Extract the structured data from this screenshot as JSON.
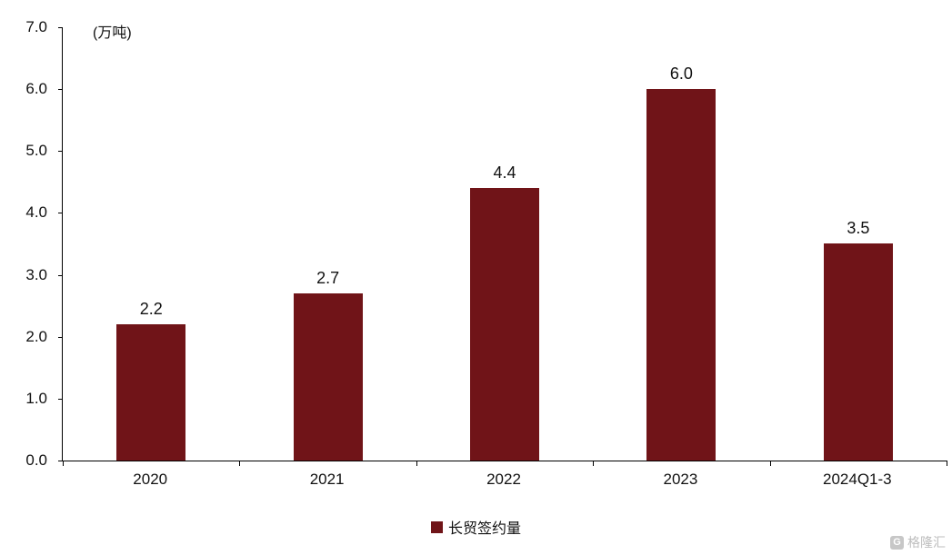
{
  "chart_data": {
    "type": "bar",
    "title": "",
    "unit_label": "(万吨)",
    "categories": [
      "2020",
      "2021",
      "2022",
      "2023",
      "2024Q1-3"
    ],
    "values": [
      2.2,
      2.7,
      4.4,
      6.0,
      3.5
    ],
    "value_labels": [
      "2.2",
      "2.7",
      "4.4",
      "6.0",
      "3.5"
    ],
    "legend": "长贸签约量",
    "ylim": [
      0,
      7
    ],
    "yticks": [
      "7.0",
      "6.0",
      "5.0",
      "4.0",
      "3.0",
      "2.0",
      "1.0",
      "0.0"
    ],
    "bar_color": "#701418",
    "axis_color": "#000000",
    "grid": false,
    "legend_position": "bottom"
  },
  "watermark": {
    "text": "格隆汇",
    "icon": "G"
  }
}
